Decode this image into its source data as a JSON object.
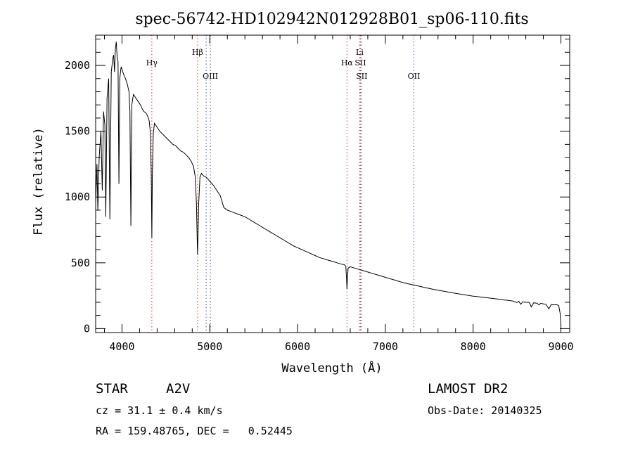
{
  "chart_data": {
    "type": "line",
    "title": "spec-56742-HD102942N012928B01_sp06-110.fits",
    "xlabel": "Wavelength (Å)",
    "ylabel": "Flux (relative)",
    "xlim": [
      3700,
      9100
    ],
    "ylim": [
      -30,
      2230
    ],
    "xticks": [
      4000,
      5000,
      6000,
      7000,
      8000,
      9000
    ],
    "xtick_labels": [
      "4000",
      "5000",
      "6000",
      "7000",
      "8000",
      "9000"
    ],
    "yticks": [
      0,
      500,
      1000,
      1500,
      2000
    ],
    "ytick_labels": [
      "0",
      "500",
      "1000",
      "1500",
      "2000"
    ],
    "grid": false,
    "series": [
      {
        "color": "#000000",
        "points": [
          [
            3700,
            950
          ],
          [
            3715,
            1250
          ],
          [
            3725,
            900
          ],
          [
            3740,
            1300
          ],
          [
            3760,
            1500
          ],
          [
            3775,
            1050
          ],
          [
            3790,
            1650
          ],
          [
            3805,
            1550
          ],
          [
            3815,
            850
          ],
          [
            3830,
            1750
          ],
          [
            3848,
            1900
          ],
          [
            3862,
            830
          ],
          [
            3878,
            1950
          ],
          [
            3895,
            2050
          ],
          [
            3905,
            2080
          ],
          [
            3915,
            1950
          ],
          [
            3925,
            2130
          ],
          [
            3935,
            2180
          ],
          [
            3945,
            2060
          ],
          [
            3955,
            2030
          ],
          [
            3965,
            1100
          ],
          [
            3975,
            1900
          ],
          [
            3990,
            1990
          ],
          [
            4005,
            1960
          ],
          [
            4020,
            1930
          ],
          [
            4040,
            1900
          ],
          [
            4060,
            1860
          ],
          [
            4080,
            1800
          ],
          [
            4090,
            1650
          ],
          [
            4101,
            780
          ],
          [
            4112,
            1700
          ],
          [
            4130,
            1780
          ],
          [
            4150,
            1760
          ],
          [
            4170,
            1740
          ],
          [
            4190,
            1720
          ],
          [
            4210,
            1700
          ],
          [
            4230,
            1670
          ],
          [
            4250,
            1650
          ],
          [
            4270,
            1640
          ],
          [
            4290,
            1620
          ],
          [
            4310,
            1580
          ],
          [
            4325,
            1480
          ],
          [
            4334,
            1150
          ],
          [
            4340,
            690
          ],
          [
            4346,
            1150
          ],
          [
            4356,
            1480
          ],
          [
            4370,
            1560
          ],
          [
            4400,
            1530
          ],
          [
            4430,
            1500
          ],
          [
            4460,
            1480
          ],
          [
            4490,
            1460
          ],
          [
            4520,
            1440
          ],
          [
            4550,
            1420
          ],
          [
            4580,
            1400
          ],
          [
            4610,
            1390
          ],
          [
            4640,
            1370
          ],
          [
            4670,
            1350
          ],
          [
            4700,
            1340
          ],
          [
            4730,
            1320
          ],
          [
            4760,
            1300
          ],
          [
            4790,
            1270
          ],
          [
            4815,
            1230
          ],
          [
            4835,
            1150
          ],
          [
            4848,
            950
          ],
          [
            4856,
            700
          ],
          [
            4861,
            560
          ],
          [
            4866,
            700
          ],
          [
            4874,
            950
          ],
          [
            4888,
            1150
          ],
          [
            4905,
            1180
          ],
          [
            4930,
            1160
          ],
          [
            4960,
            1150
          ],
          [
            5000,
            1120
          ],
          [
            5040,
            1090
          ],
          [
            5080,
            1050
          ],
          [
            5120,
            1010
          ],
          [
            5160,
            920
          ],
          [
            5200,
            900
          ],
          [
            5240,
            890
          ],
          [
            5280,
            880
          ],
          [
            5320,
            870
          ],
          [
            5360,
            860
          ],
          [
            5400,
            850
          ],
          [
            5450,
            830
          ],
          [
            5500,
            810
          ],
          [
            5550,
            790
          ],
          [
            5600,
            770
          ],
          [
            5650,
            750
          ],
          [
            5700,
            730
          ],
          [
            5750,
            710
          ],
          [
            5800,
            690
          ],
          [
            5850,
            670
          ],
          [
            5900,
            650
          ],
          [
            5950,
            630
          ],
          [
            6000,
            615
          ],
          [
            6050,
            600
          ],
          [
            6100,
            585
          ],
          [
            6150,
            570
          ],
          [
            6200,
            555
          ],
          [
            6250,
            540
          ],
          [
            6300,
            530
          ],
          [
            6350,
            520
          ],
          [
            6400,
            510
          ],
          [
            6450,
            500
          ],
          [
            6500,
            490
          ],
          [
            6535,
            485
          ],
          [
            6550,
            470
          ],
          [
            6558,
            380
          ],
          [
            6563,
            300
          ],
          [
            6568,
            380
          ],
          [
            6576,
            460
          ],
          [
            6600,
            470
          ],
          [
            6650,
            460
          ],
          [
            6700,
            450
          ],
          [
            6750,
            440
          ],
          [
            6800,
            430
          ],
          [
            6850,
            420
          ],
          [
            6900,
            410
          ],
          [
            6950,
            400
          ],
          [
            7000,
            390
          ],
          [
            7050,
            380
          ],
          [
            7100,
            370
          ],
          [
            7150,
            360
          ],
          [
            7200,
            350
          ],
          [
            7250,
            342
          ],
          [
            7300,
            335
          ],
          [
            7350,
            328
          ],
          [
            7400,
            320
          ],
          [
            7450,
            312
          ],
          [
            7500,
            305
          ],
          [
            7550,
            298
          ],
          [
            7600,
            292
          ],
          [
            7650,
            286
          ],
          [
            7700,
            280
          ],
          [
            7750,
            274
          ],
          [
            7800,
            268
          ],
          [
            7850,
            262
          ],
          [
            7900,
            257
          ],
          [
            7950,
            252
          ],
          [
            8000,
            247
          ],
          [
            8050,
            243
          ],
          [
            8100,
            239
          ],
          [
            8150,
            235
          ],
          [
            8200,
            231
          ],
          [
            8250,
            227
          ],
          [
            8300,
            223
          ],
          [
            8350,
            218
          ],
          [
            8400,
            214
          ],
          [
            8450,
            210
          ],
          [
            8498,
            198
          ],
          [
            8520,
            207
          ],
          [
            8542,
            185
          ],
          [
            8565,
            203
          ],
          [
            8600,
            200
          ],
          [
            8640,
            200
          ],
          [
            8662,
            165
          ],
          [
            8690,
            196
          ],
          [
            8730,
            193
          ],
          [
            8750,
            180
          ],
          [
            8770,
            192
          ],
          [
            8800,
            188
          ],
          [
            8830,
            185
          ],
          [
            8862,
            150
          ],
          [
            8890,
            183
          ],
          [
            8920,
            180
          ],
          [
            8950,
            182
          ],
          [
            8975,
            175
          ],
          [
            8990,
            120
          ],
          [
            9000,
            20
          ]
        ]
      }
    ],
    "lines": [
      {
        "x": 4340,
        "label": "Hγ",
        "label_value": 2000,
        "color": "#d03030"
      },
      {
        "x": 4861,
        "label": "Hβ",
        "label_value": 2080,
        "color": "#d03030"
      },
      {
        "x": 4959,
        "label": "",
        "label_value": 0,
        "color": "#5050a0"
      },
      {
        "x": 5007,
        "label": "OIII",
        "label_value": 1900,
        "color": "#5050a0"
      },
      {
        "x": 6563,
        "label": "Hα",
        "label_value": 2000,
        "color": "#d03030"
      },
      {
        "x": 6708,
        "label": "Li",
        "label_value": 2080,
        "color": "#d03030"
      },
      {
        "x": 6716,
        "label": "SII",
        "label_value": 2000,
        "color": "#5050a0"
      },
      {
        "x": 6731,
        "label": "SII",
        "label_value": 1900,
        "color": "#d03030"
      },
      {
        "x": 7325,
        "label": "OII",
        "label_value": 1900,
        "color": "#5050a0"
      }
    ],
    "annotations": {
      "object_type": "STAR",
      "subclass": "A2V",
      "survey": "LAMOST DR2",
      "cz": "cz = 31.1 ± 0.4 km/s",
      "obs_date": "Obs-Date: 20140325",
      "coords": "RA = 159.48765, DEC =   0.52445"
    }
  }
}
